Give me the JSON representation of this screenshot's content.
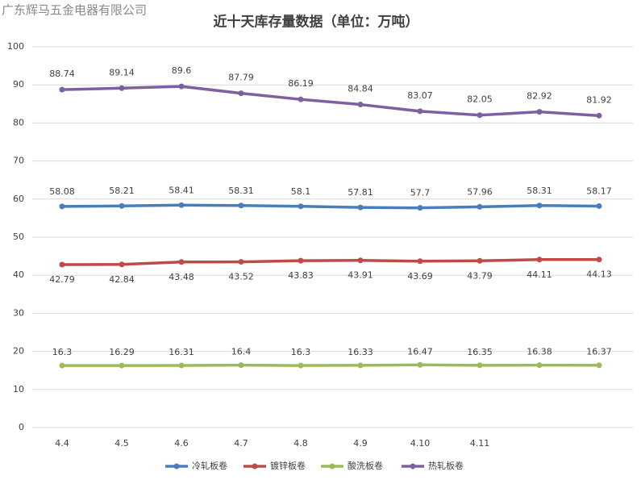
{
  "watermark": "广东辉马五金电器有限公司",
  "chart_data": {
    "type": "line",
    "title": "近十天库存量数据（单位：万吨）",
    "categories": [
      "4.4",
      "4.5",
      "4.6",
      "4.7",
      "4.8",
      "4.9",
      "4.10",
      "4.11",
      null,
      null
    ],
    "series": [
      {
        "name": "冷轧板卷",
        "color": "#4a7ebb",
        "values": [
          58.08,
          58.21,
          58.41,
          58.31,
          58.1,
          57.81,
          57.7,
          57.96,
          58.31,
          58.17
        ]
      },
      {
        "name": "镀锌板卷",
        "color": "#be4b48",
        "values": [
          42.79,
          42.84,
          43.48,
          43.52,
          43.83,
          43.91,
          43.69,
          43.79,
          44.11,
          44.13
        ]
      },
      {
        "name": "酸洗板卷",
        "color": "#9bbb59",
        "values": [
          16.3,
          16.29,
          16.31,
          16.4,
          16.3,
          16.33,
          16.47,
          16.35,
          16.38,
          16.37
        ]
      },
      {
        "name": "热轧板卷",
        "color": "#7f5f9f",
        "values": [
          88.74,
          89.14,
          89.6,
          87.79,
          86.19,
          84.84,
          83.07,
          82.05,
          82.92,
          81.92
        ]
      }
    ],
    "ylim": [
      0,
      100
    ],
    "yticks": [
      0,
      10,
      20,
      30,
      40,
      50,
      60,
      70,
      80,
      90,
      100
    ],
    "grid": true,
    "legend": "bottom"
  }
}
